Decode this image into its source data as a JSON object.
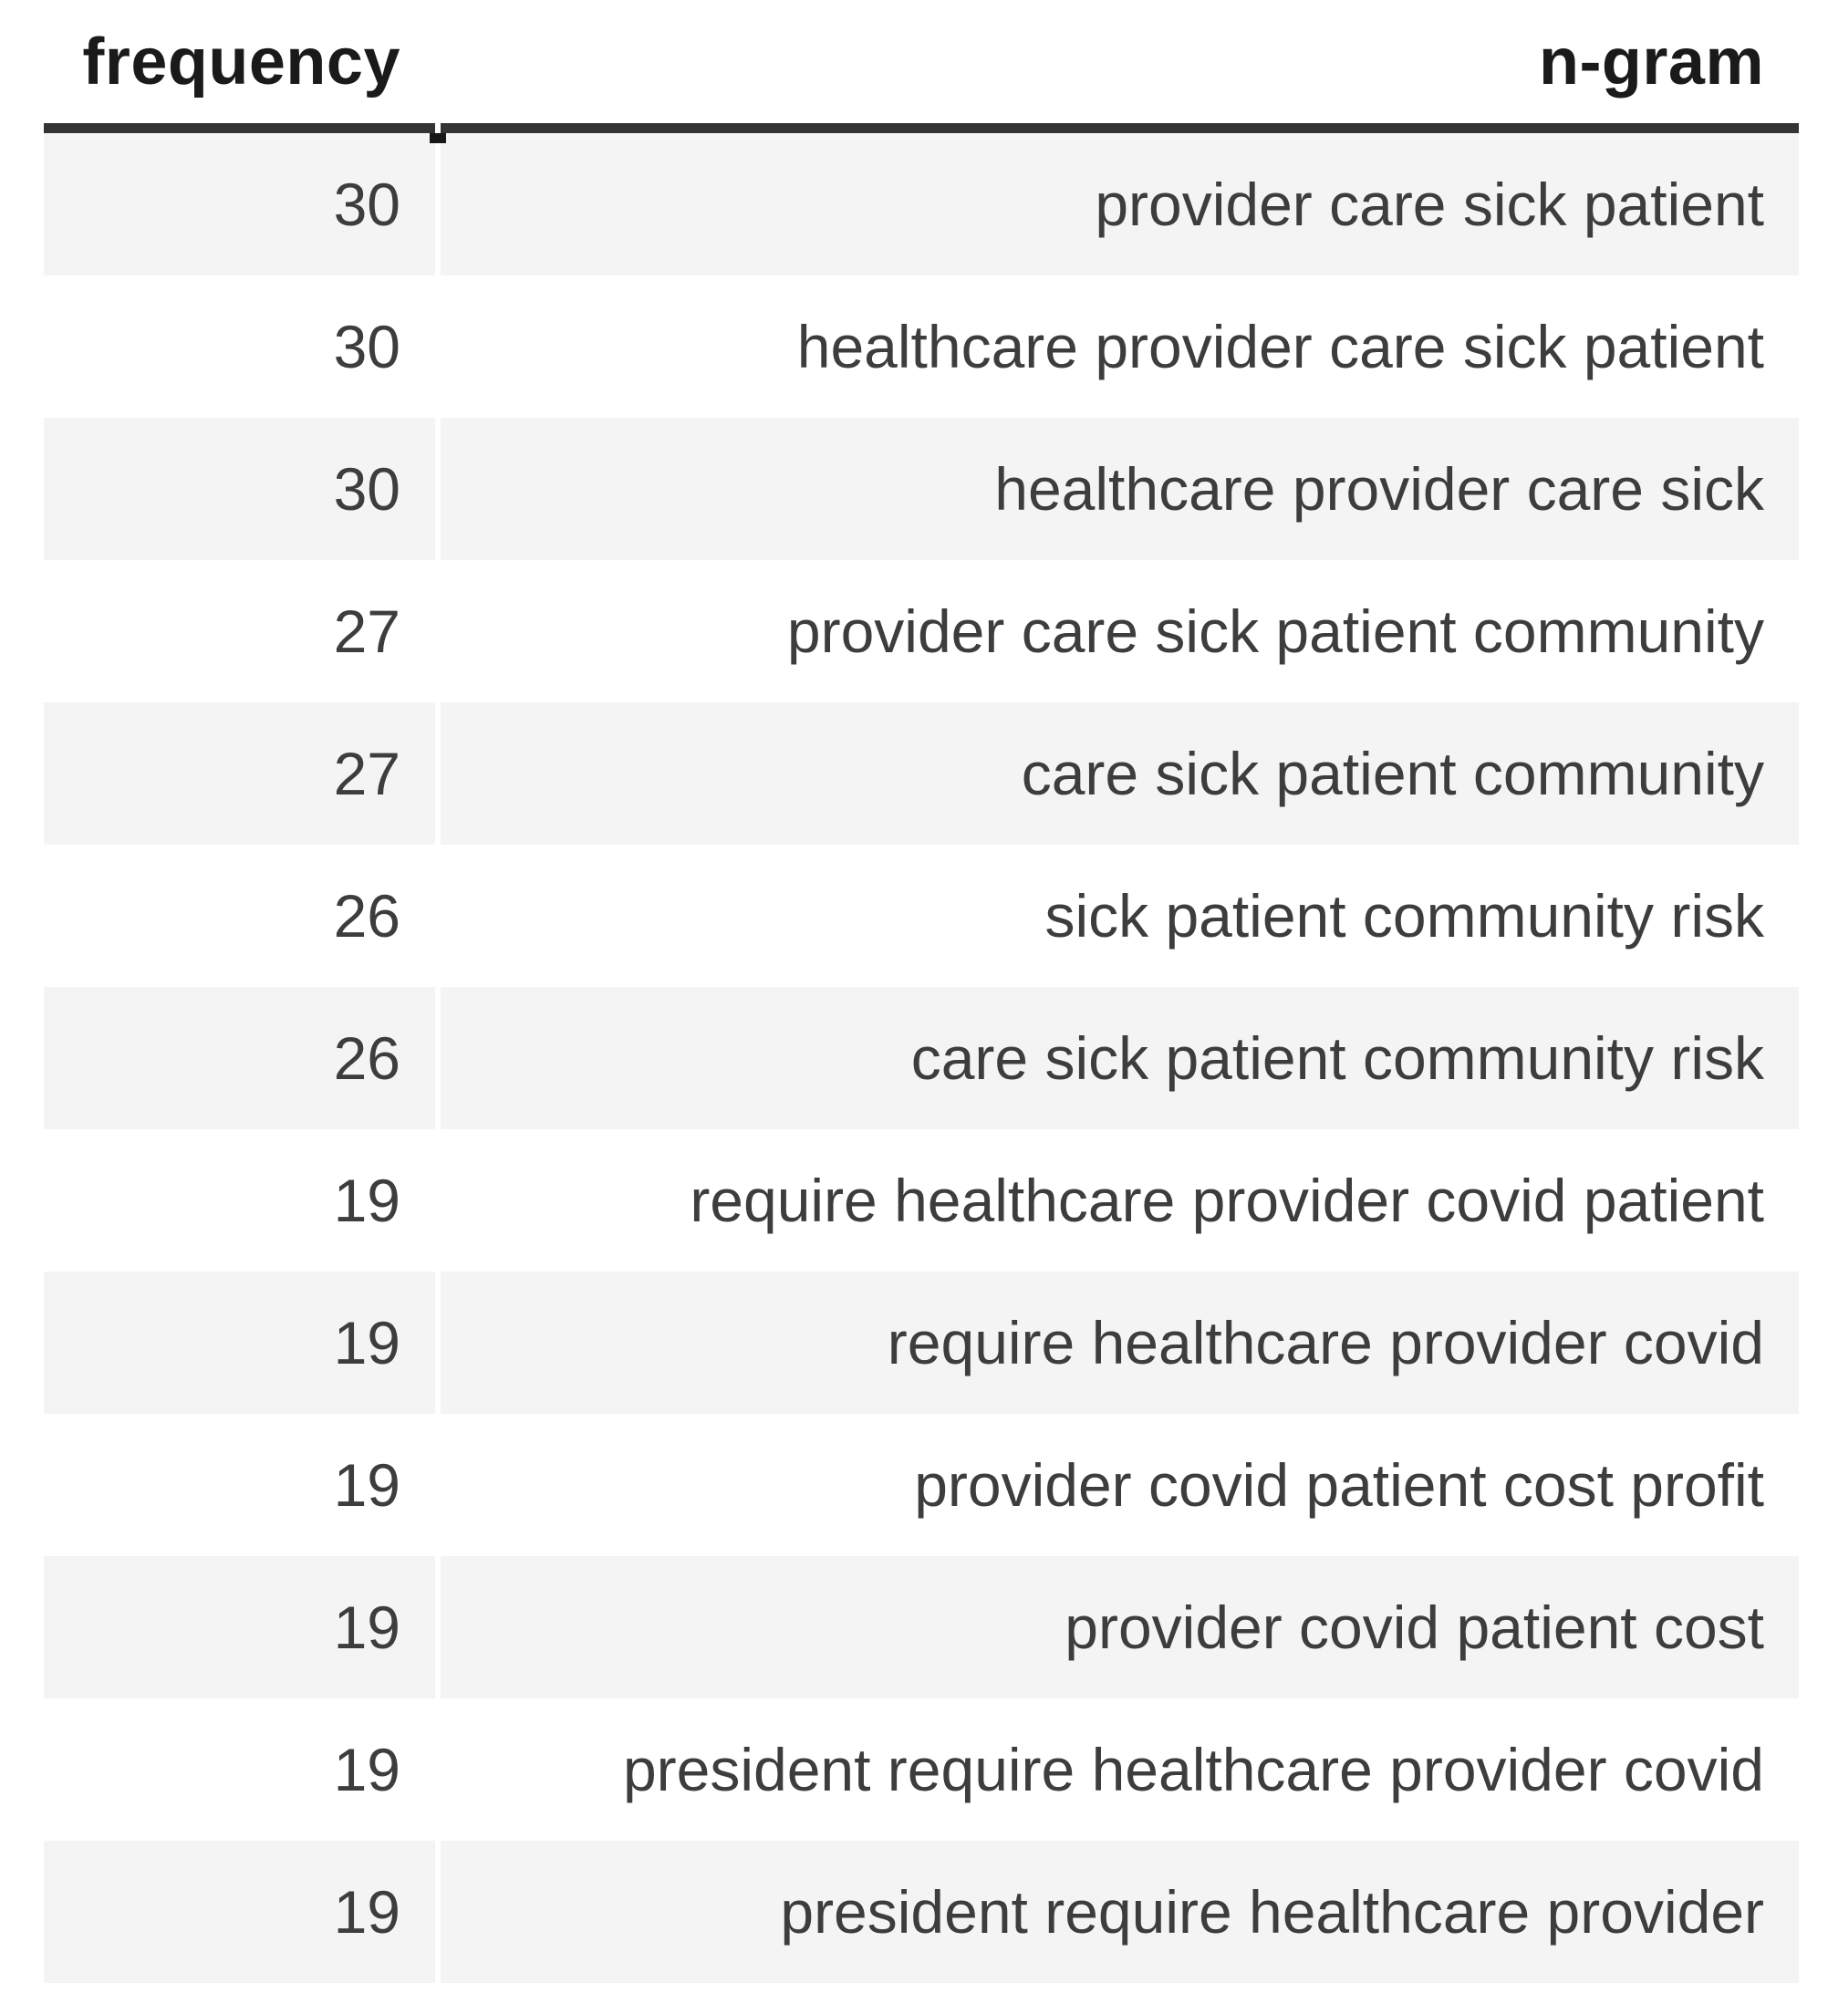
{
  "chart_data": {
    "type": "table",
    "title": "",
    "columns": [
      "frequency",
      "n-gram"
    ],
    "rows": [
      {
        "frequency": "30",
        "ngram": "provider care sick patient"
      },
      {
        "frequency": "30",
        "ngram": "healthcare provider care sick patient"
      },
      {
        "frequency": "30",
        "ngram": "healthcare provider care sick"
      },
      {
        "frequency": "27",
        "ngram": "provider care sick patient community"
      },
      {
        "frequency": "27",
        "ngram": "care sick patient community"
      },
      {
        "frequency": "26",
        "ngram": "sick patient community risk"
      },
      {
        "frequency": "26",
        "ngram": "care sick patient community risk"
      },
      {
        "frequency": "19",
        "ngram": "require healthcare provider covid patient"
      },
      {
        "frequency": "19",
        "ngram": "require healthcare provider covid"
      },
      {
        "frequency": "19",
        "ngram": "provider covid patient cost profit"
      },
      {
        "frequency": "19",
        "ngram": "provider covid patient cost"
      },
      {
        "frequency": "19",
        "ngram": "president require healthcare provider covid"
      },
      {
        "frequency": "19",
        "ngram": "president require healthcare provider"
      }
    ],
    "layout": {
      "frequency_alignment": "right",
      "ngram_alignment": "right",
      "zebra_striping": "odd rows shaded starting with first data row"
    }
  },
  "table": {
    "columns": [
      "frequency",
      "n-gram"
    ],
    "rows": [
      {
        "frequency": "30",
        "ngram": "provider care sick patient"
      },
      {
        "frequency": "30",
        "ngram": "healthcare provider care sick patient"
      },
      {
        "frequency": "30",
        "ngram": "healthcare provider care sick"
      },
      {
        "frequency": "27",
        "ngram": "provider care sick patient community"
      },
      {
        "frequency": "27",
        "ngram": "care sick patient community"
      },
      {
        "frequency": "26",
        "ngram": "sick patient community risk"
      },
      {
        "frequency": "26",
        "ngram": "care sick patient community risk"
      },
      {
        "frequency": "19",
        "ngram": "require healthcare provider covid patient"
      },
      {
        "frequency": "19",
        "ngram": "require healthcare provider covid"
      },
      {
        "frequency": "19",
        "ngram": "provider covid patient cost profit"
      },
      {
        "frequency": "19",
        "ngram": "provider covid patient cost"
      },
      {
        "frequency": "19",
        "ngram": "president require healthcare provider covid"
      },
      {
        "frequency": "19",
        "ngram": "president require healthcare provider"
      }
    ]
  },
  "theme": {
    "background_color": "#ffffff",
    "stripe_color": "#f4f4f4",
    "header_text_color": "#1a1a1a",
    "cell_text_color": "#3d3d3d",
    "header_rule_color": "#343434"
  }
}
